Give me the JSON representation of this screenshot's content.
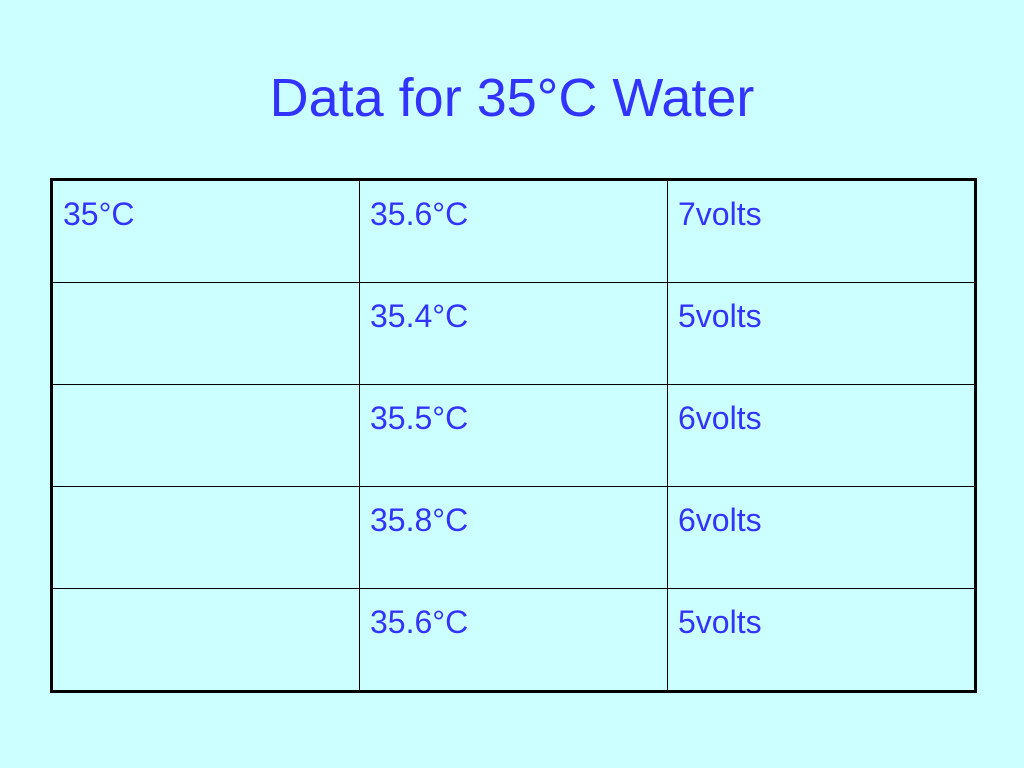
{
  "slide": {
    "title": "Data for 35°C Water"
  },
  "table": {
    "rows": [
      [
        "35°C",
        "35.6°C",
        "7volts"
      ],
      [
        "",
        "35.4°C",
        "5volts"
      ],
      [
        "",
        "35.5°C",
        "6volts"
      ],
      [
        "",
        "35.8°C",
        "6volts"
      ],
      [
        "",
        "35.6°C",
        "5volts"
      ]
    ]
  },
  "colors": {
    "background": "#ccffff",
    "text": "#3333ff",
    "border": "#000000"
  }
}
